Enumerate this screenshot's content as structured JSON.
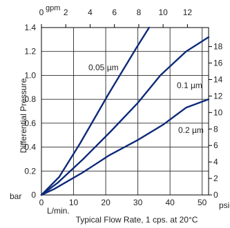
{
  "chart_data": {
    "type": "line",
    "xlabel": "Typical Flow Rate, 1 cps. at 20°C",
    "x_unit": "L/min.",
    "x_top_unit": "gpm",
    "ylabel": "Differential Pressure",
    "y_unit": "bar",
    "y_right_unit": "psid",
    "xlim": [
      0,
      52
    ],
    "ylim": [
      0,
      1.4
    ],
    "x_ticks": [
      "0",
      "10",
      "20",
      "30",
      "40",
      "50"
    ],
    "x_top_ticks": [
      "0",
      "2",
      "4",
      "6",
      "8",
      "10",
      "12"
    ],
    "y_ticks": [
      "0",
      "0.2",
      "0.4",
      "0.6",
      "0.8",
      "1.0",
      "1.2",
      "1.4"
    ],
    "y_right_ticks": [
      "0",
      "2",
      "4",
      "6",
      "8",
      "10",
      "12",
      "14",
      "16",
      "18"
    ],
    "grid": true,
    "series": [
      {
        "name": "0.05 µm",
        "color": "#0d2a7a",
        "x": [
          0,
          5.5,
          12,
          21,
          30,
          33.5
        ],
        "y": [
          0,
          0.15,
          0.43,
          0.85,
          1.25,
          1.4
        ]
      },
      {
        "name": "0.1 µm",
        "color": "#0d2a7a",
        "x": [
          0,
          5,
          13,
          21.5,
          30,
          37,
          45,
          52
        ],
        "y": [
          0,
          0.1,
          0.3,
          0.53,
          0.77,
          1.0,
          1.2,
          1.32
        ]
      },
      {
        "name": "0.2 µm",
        "color": "#0d2a7a",
        "x": [
          0,
          4,
          13,
          21,
          30,
          38,
          45,
          52
        ],
        "y": [
          0,
          0.05,
          0.19,
          0.33,
          0.46,
          0.59,
          0.73,
          0.8
        ]
      }
    ]
  }
}
